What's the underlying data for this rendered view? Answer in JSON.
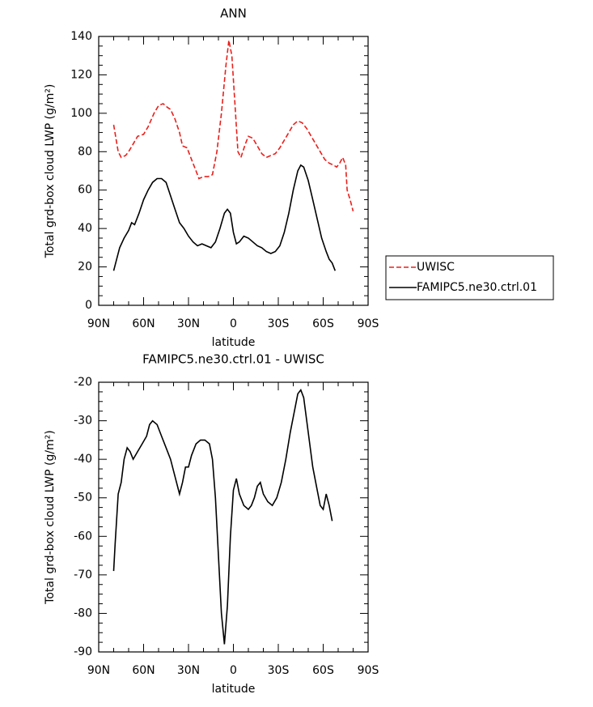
{
  "chart_data": [
    {
      "type": "line",
      "title": "ANN",
      "xlabel": "latitude",
      "ylabel": "Total grd-box cloud LWP (g/m²)",
      "xlim": [
        90,
        -90
      ],
      "xticks": [
        {
          "value": 90,
          "label": "90N"
        },
        {
          "value": 60,
          "label": "60N"
        },
        {
          "value": 30,
          "label": "30N"
        },
        0,
        {
          "value": -30,
          "label": "30S"
        },
        {
          "value": -60,
          "label": "60S"
        },
        {
          "value": -90,
          "label": "90S"
        }
      ],
      "ylim": [
        0,
        140
      ],
      "yticks": [
        0,
        20,
        40,
        60,
        80,
        100,
        120,
        140
      ],
      "legend": "right",
      "series": [
        {
          "name": "UWISC",
          "color": "#e8201c",
          "linestyle": "dashed",
          "x": [
            80,
            77,
            75,
            72,
            70,
            67,
            64,
            60,
            57,
            53,
            50,
            47,
            44,
            42,
            39,
            36,
            34,
            31,
            28,
            25,
            23,
            20,
            17,
            14,
            11,
            8,
            5,
            3,
            1,
            -1,
            -3,
            -5,
            -8,
            -10,
            -13,
            -16,
            -19,
            -22,
            -25,
            -28,
            -31,
            -34,
            -37,
            -40,
            -43,
            -46,
            -49,
            -52,
            -55,
            -58,
            -61,
            -64,
            -67,
            -69,
            -71,
            -73,
            -75,
            -76,
            -78,
            -80
          ],
          "values": [
            94,
            80,
            77,
            78,
            80,
            84,
            88,
            89,
            93,
            100,
            104,
            105,
            103,
            102,
            97,
            90,
            83,
            82,
            76,
            70,
            66,
            67,
            67,
            68,
            80,
            100,
            125,
            138,
            130,
            105,
            80,
            77,
            84,
            88,
            87,
            83,
            79,
            77,
            78,
            79,
            82,
            86,
            90,
            94,
            96,
            95,
            92,
            88,
            84,
            80,
            76,
            74,
            73,
            72,
            74,
            77,
            73,
            60,
            55,
            49
          ]
        },
        {
          "name": "FAMIPC5.ne30.ctrl.01",
          "color": "#000000",
          "linestyle": "solid",
          "x": [
            80,
            78,
            76,
            73,
            70,
            68,
            66,
            63,
            60,
            57,
            54,
            51,
            48,
            45,
            42,
            39,
            36,
            33,
            30,
            27,
            24,
            21,
            18,
            15,
            12,
            9,
            6,
            4,
            2,
            0,
            -2,
            -4,
            -7,
            -10,
            -13,
            -16,
            -19,
            -22,
            -25,
            -28,
            -31,
            -34,
            -37,
            -40,
            -43,
            -45,
            -47,
            -50,
            -53,
            -56,
            -59,
            -62,
            -64,
            -66,
            -68
          ],
          "values": [
            18,
            24,
            30,
            35,
            39,
            43,
            42,
            48,
            55,
            60,
            64,
            66,
            66,
            64,
            57,
            50,
            43,
            40,
            36,
            33,
            31,
            32,
            31,
            30,
            33,
            40,
            48,
            50,
            48,
            38,
            32,
            33,
            36,
            35,
            33,
            31,
            30,
            28,
            27,
            28,
            31,
            38,
            48,
            60,
            70,
            73,
            72,
            65,
            55,
            45,
            35,
            28,
            24,
            22,
            18
          ]
        }
      ]
    },
    {
      "type": "line",
      "title": "FAMIPC5.ne30.ctrl.01 - UWISC",
      "xlabel": "latitude",
      "ylabel": "Total grd-box cloud LWP (g/m²)",
      "xlim": [
        90,
        -90
      ],
      "xticks": [
        {
          "value": 90,
          "label": "90N"
        },
        {
          "value": 60,
          "label": "60N"
        },
        {
          "value": 30,
          "label": "30N"
        },
        0,
        {
          "value": -30,
          "label": "30S"
        },
        {
          "value": -60,
          "label": "60S"
        },
        {
          "value": -90,
          "label": "90S"
        }
      ],
      "ylim": [
        -90,
        -20
      ],
      "yticks": [
        -90,
        -80,
        -70,
        -60,
        -50,
        -40,
        -30,
        -20
      ],
      "series": [
        {
          "color": "#000000",
          "linestyle": "solid",
          "x": [
            80,
            79,
            77,
            75,
            73,
            71,
            69,
            67,
            64,
            61,
            58,
            56,
            54,
            51,
            48,
            45,
            42,
            40,
            38,
            36,
            34,
            32,
            30,
            28,
            25,
            22,
            19,
            16,
            14,
            12,
            10,
            8,
            6,
            4,
            2,
            0,
            -2,
            -4,
            -7,
            -10,
            -12,
            -14,
            -16,
            -18,
            -20,
            -23,
            -26,
            -29,
            -32,
            -35,
            -38,
            -41,
            -43,
            -45,
            -47,
            -50,
            -53,
            -56,
            -58,
            -60,
            -62,
            -64,
            -66
          ],
          "values": [
            -69,
            -62,
            -49,
            -46,
            -40,
            -37,
            -38,
            -40,
            -38,
            -36,
            -34,
            -31,
            -30,
            -31,
            -34,
            -37,
            -40,
            -43,
            -46,
            -49,
            -46,
            -42,
            -42,
            -39,
            -36,
            -35,
            -35,
            -36,
            -40,
            -50,
            -65,
            -80,
            -88,
            -78,
            -60,
            -48,
            -45,
            -49,
            -52,
            -53,
            -52,
            -50,
            -47,
            -46,
            -49,
            -51,
            -52,
            -50,
            -46,
            -40,
            -33,
            -27,
            -23,
            -22,
            -24,
            -33,
            -42,
            -48,
            -52,
            -53,
            -49,
            -52,
            -56
          ]
        }
      ]
    }
  ]
}
